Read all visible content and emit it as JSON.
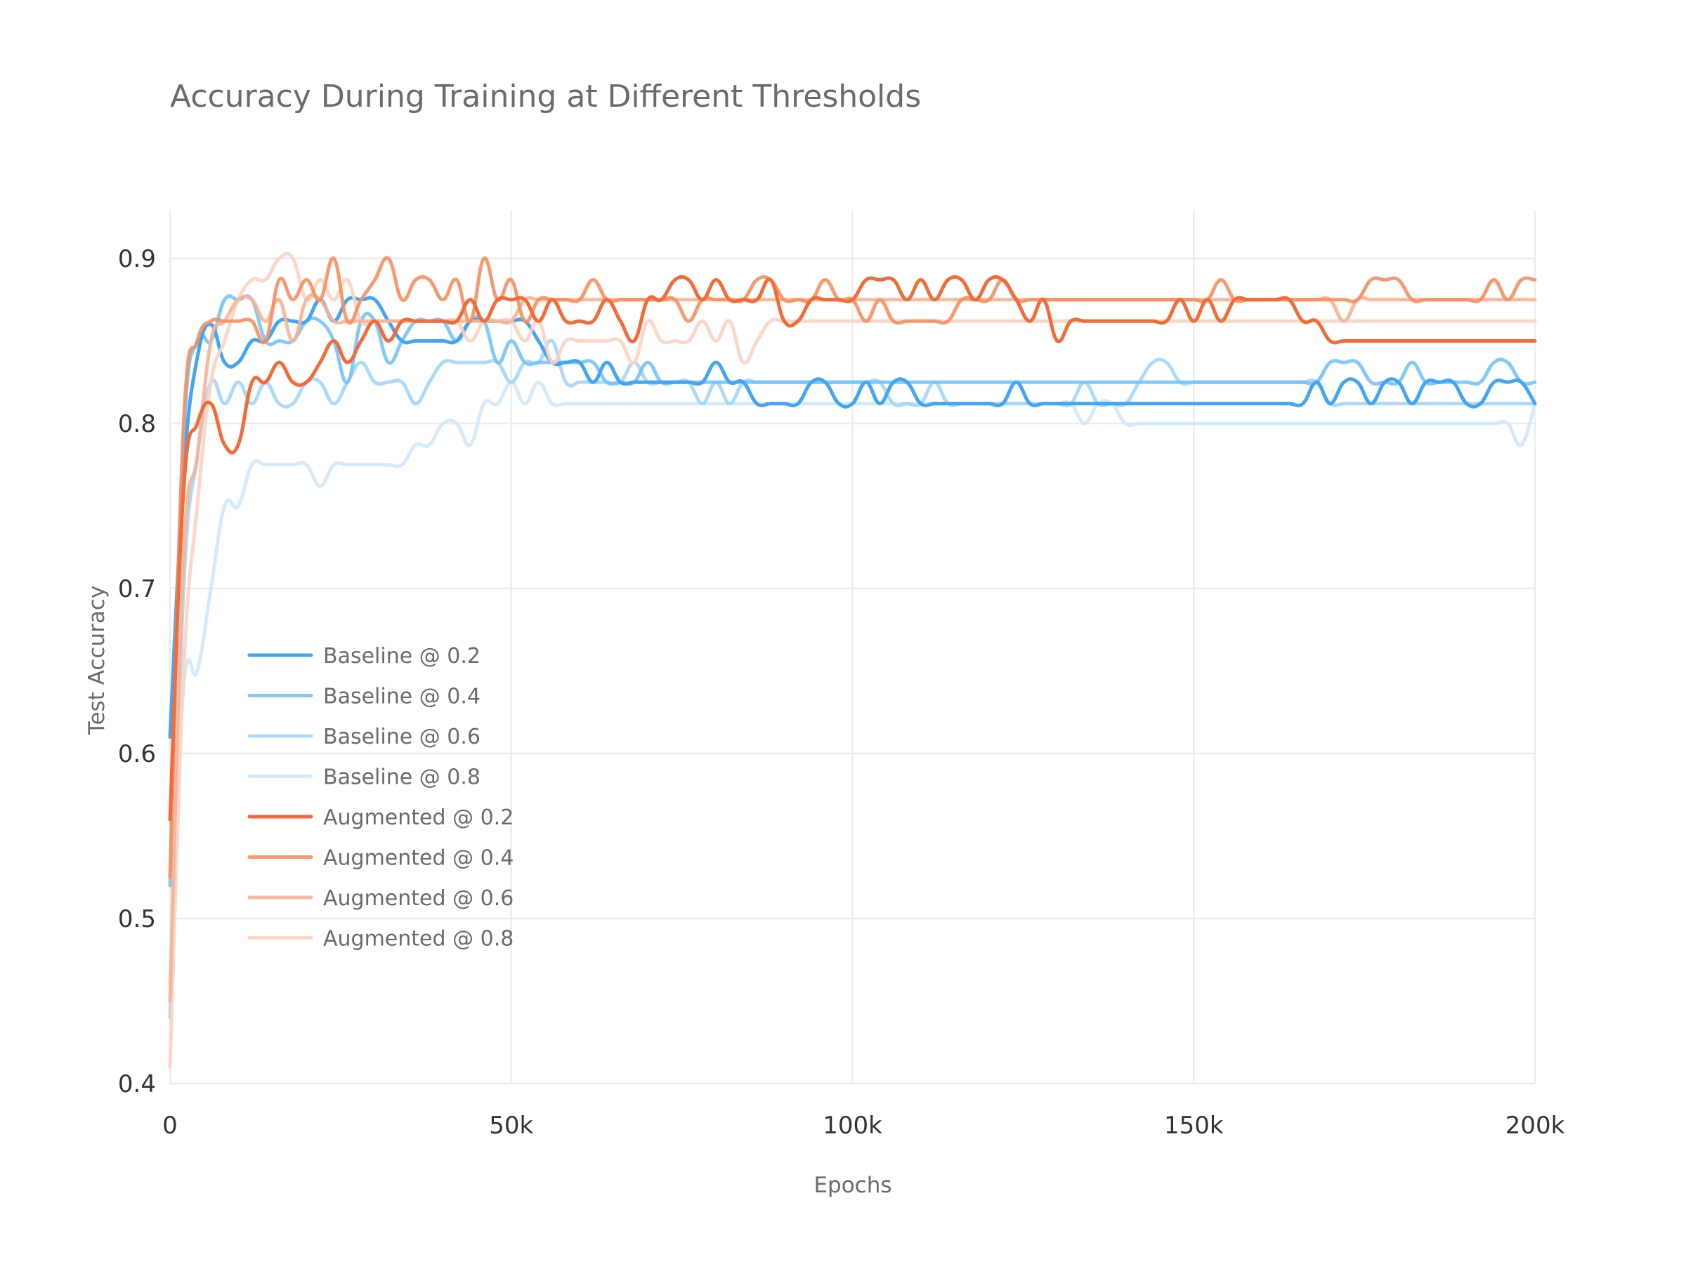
{
  "chart_data": {
    "type": "line",
    "title": "Accuracy During Training at Different Thresholds",
    "xlabel": "Epochs",
    "ylabel": "Test Accuracy",
    "xlim": [
      0,
      200000
    ],
    "ylim": [
      0.4,
      0.9
    ],
    "x_ticks": [
      0,
      50000,
      100000,
      150000,
      200000
    ],
    "x_tick_labels": [
      "0",
      "50k",
      "100k",
      "150k",
      "200k"
    ],
    "y_ticks": [
      0.4,
      0.5,
      0.6,
      0.7,
      0.8,
      0.9
    ],
    "y_tick_labels": [
      "0.4",
      "0.5",
      "0.6",
      "0.7",
      "0.8",
      "0.9"
    ],
    "grid": true,
    "legend_position": "lower-left",
    "x": [
      0,
      2000,
      4000,
      6000,
      8000,
      10000,
      12000,
      14000,
      16000,
      18000,
      20000,
      22000,
      24000,
      26000,
      28000,
      30000,
      32000,
      34000,
      36000,
      38000,
      40000,
      42000,
      44000,
      46000,
      48000,
      50000,
      52000,
      54000,
      56000,
      58000,
      60000,
      62000,
      64000,
      66000,
      68000,
      70000,
      72000,
      74000,
      76000,
      78000,
      80000,
      82000,
      84000,
      86000,
      88000,
      90000,
      92000,
      94000,
      96000,
      98000,
      100000,
      102000,
      104000,
      106000,
      108000,
      110000,
      112000,
      114000,
      116000,
      118000,
      120000,
      122000,
      124000,
      126000,
      128000,
      130000,
      132000,
      134000,
      136000,
      138000,
      140000,
      142000,
      144000,
      146000,
      148000,
      150000,
      152000,
      154000,
      156000,
      158000,
      160000,
      162000,
      164000,
      166000,
      168000,
      170000,
      172000,
      174000,
      176000,
      178000,
      180000,
      182000,
      184000,
      186000,
      188000,
      190000,
      192000,
      194000,
      196000,
      198000,
      200000
    ],
    "series": [
      {
        "name": "Baseline @ 0.2",
        "color": "#42a5f5",
        "opacity": 1.0,
        "values": [
          0.61,
          0.77,
          0.84,
          0.86,
          0.837,
          0.837,
          0.85,
          0.85,
          0.862,
          0.862,
          0.862,
          0.875,
          0.862,
          0.875,
          0.875,
          0.875,
          0.862,
          0.85,
          0.85,
          0.85,
          0.85,
          0.85,
          0.862,
          0.862,
          0.862,
          0.862,
          0.862,
          0.85,
          0.837,
          0.837,
          0.837,
          0.825,
          0.837,
          0.825,
          0.825,
          0.825,
          0.825,
          0.825,
          0.825,
          0.825,
          0.837,
          0.825,
          0.825,
          0.812,
          0.812,
          0.812,
          0.812,
          0.825,
          0.825,
          0.812,
          0.812,
          0.825,
          0.812,
          0.825,
          0.825,
          0.812,
          0.812,
          0.812,
          0.812,
          0.812,
          0.812,
          0.812,
          0.825,
          0.812,
          0.812,
          0.812,
          0.812,
          0.812,
          0.812,
          0.812,
          0.812,
          0.812,
          0.812,
          0.812,
          0.812,
          0.812,
          0.812,
          0.812,
          0.812,
          0.812,
          0.812,
          0.812,
          0.812,
          0.812,
          0.825,
          0.812,
          0.825,
          0.825,
          0.812,
          0.825,
          0.825,
          0.812,
          0.825,
          0.825,
          0.825,
          0.812,
          0.812,
          0.825,
          0.825,
          0.825,
          0.812
        ]
      },
      {
        "name": "Baseline @ 0.4",
        "color": "#6ec1f7",
        "opacity": 0.85,
        "values": [
          0.52,
          0.79,
          0.85,
          0.85,
          0.875,
          0.875,
          0.875,
          0.85,
          0.85,
          0.85,
          0.862,
          0.862,
          0.85,
          0.825,
          0.862,
          0.862,
          0.837,
          0.85,
          0.862,
          0.862,
          0.862,
          0.85,
          0.862,
          0.862,
          0.837,
          0.85,
          0.837,
          0.837,
          0.837,
          0.837,
          0.837,
          0.837,
          0.825,
          0.825,
          0.825,
          0.837,
          0.825,
          0.825,
          0.825,
          0.825,
          0.825,
          0.825,
          0.825,
          0.825,
          0.825,
          0.825,
          0.825,
          0.825,
          0.825,
          0.825,
          0.825,
          0.825,
          0.825,
          0.825,
          0.825,
          0.825,
          0.825,
          0.825,
          0.825,
          0.825,
          0.825,
          0.825,
          0.825,
          0.825,
          0.825,
          0.825,
          0.825,
          0.825,
          0.825,
          0.825,
          0.825,
          0.825,
          0.825,
          0.825,
          0.825,
          0.825,
          0.825,
          0.825,
          0.825,
          0.825,
          0.825,
          0.825,
          0.825,
          0.825,
          0.825,
          0.837,
          0.837,
          0.837,
          0.825,
          0.825,
          0.825,
          0.837,
          0.825,
          0.825,
          0.825,
          0.825,
          0.825,
          0.837,
          0.837,
          0.825,
          0.825
        ]
      },
      {
        "name": "Baseline @ 0.6",
        "color": "#9fd3f9",
        "opacity": 0.85,
        "values": [
          0.44,
          0.7,
          0.78,
          0.825,
          0.812,
          0.825,
          0.812,
          0.825,
          0.812,
          0.812,
          0.825,
          0.825,
          0.812,
          0.825,
          0.837,
          0.825,
          0.825,
          0.825,
          0.812,
          0.825,
          0.837,
          0.837,
          0.837,
          0.837,
          0.837,
          0.825,
          0.837,
          0.837,
          0.85,
          0.825,
          0.825,
          0.825,
          0.825,
          0.825,
          0.837,
          0.825,
          0.825,
          0.825,
          0.825,
          0.812,
          0.825,
          0.812,
          0.825,
          0.825,
          0.825,
          0.825,
          0.825,
          0.825,
          0.825,
          0.825,
          0.825,
          0.825,
          0.825,
          0.812,
          0.812,
          0.812,
          0.825,
          0.812,
          0.812,
          0.812,
          0.812,
          0.812,
          0.812,
          0.812,
          0.812,
          0.812,
          0.812,
          0.825,
          0.812,
          0.812,
          0.812,
          0.825,
          0.837,
          0.837,
          0.825,
          0.825,
          0.825,
          0.825,
          0.825,
          0.825,
          0.825,
          0.825,
          0.825,
          0.825,
          0.825,
          0.812,
          0.812,
          0.812,
          0.812,
          0.812,
          0.812,
          0.812,
          0.812,
          0.812,
          0.812,
          0.812,
          0.812,
          0.812,
          0.812,
          0.812,
          0.812
        ]
      },
      {
        "name": "Baseline @ 0.8",
        "color": "#cfe8fb",
        "opacity": 0.9,
        "values": [
          0.46,
          0.64,
          0.65,
          0.7,
          0.75,
          0.75,
          0.775,
          0.775,
          0.775,
          0.775,
          0.775,
          0.762,
          0.775,
          0.775,
          0.775,
          0.775,
          0.775,
          0.775,
          0.787,
          0.787,
          0.8,
          0.8,
          0.787,
          0.812,
          0.812,
          0.825,
          0.812,
          0.825,
          0.812,
          0.812,
          0.812,
          0.812,
          0.812,
          0.812,
          0.812,
          0.812,
          0.812,
          0.812,
          0.812,
          0.812,
          0.812,
          0.812,
          0.812,
          0.812,
          0.812,
          0.812,
          0.812,
          0.812,
          0.812,
          0.812,
          0.812,
          0.812,
          0.812,
          0.812,
          0.812,
          0.812,
          0.812,
          0.812,
          0.812,
          0.812,
          0.812,
          0.812,
          0.812,
          0.812,
          0.812,
          0.812,
          0.812,
          0.8,
          0.812,
          0.812,
          0.8,
          0.8,
          0.8,
          0.8,
          0.8,
          0.8,
          0.8,
          0.8,
          0.8,
          0.8,
          0.8,
          0.8,
          0.8,
          0.8,
          0.8,
          0.8,
          0.8,
          0.8,
          0.8,
          0.8,
          0.8,
          0.8,
          0.8,
          0.8,
          0.8,
          0.8,
          0.8,
          0.8,
          0.8,
          0.787,
          0.812
        ]
      },
      {
        "name": "Augmented @ 0.2",
        "color": "#f26b38",
        "opacity": 1.0,
        "values": [
          0.56,
          0.76,
          0.8,
          0.812,
          0.787,
          0.787,
          0.825,
          0.825,
          0.837,
          0.825,
          0.825,
          0.837,
          0.85,
          0.837,
          0.85,
          0.862,
          0.85,
          0.862,
          0.862,
          0.862,
          0.862,
          0.862,
          0.875,
          0.862,
          0.875,
          0.875,
          0.875,
          0.862,
          0.875,
          0.862,
          0.862,
          0.862,
          0.875,
          0.862,
          0.85,
          0.875,
          0.875,
          0.887,
          0.887,
          0.875,
          0.887,
          0.875,
          0.875,
          0.875,
          0.887,
          0.862,
          0.862,
          0.875,
          0.875,
          0.875,
          0.875,
          0.887,
          0.887,
          0.887,
          0.875,
          0.887,
          0.875,
          0.887,
          0.887,
          0.875,
          0.887,
          0.887,
          0.875,
          0.862,
          0.875,
          0.85,
          0.862,
          0.862,
          0.862,
          0.862,
          0.862,
          0.862,
          0.862,
          0.862,
          0.875,
          0.862,
          0.875,
          0.862,
          0.875,
          0.875,
          0.875,
          0.875,
          0.875,
          0.862,
          0.862,
          0.85,
          0.85,
          0.85,
          0.85,
          0.85,
          0.85,
          0.85,
          0.85,
          0.85,
          0.85,
          0.85,
          0.85,
          0.85,
          0.85,
          0.85,
          0.85
        ]
      },
      {
        "name": "Augmented @ 0.4",
        "color": "#f5905f",
        "opacity": 0.9,
        "values": [
          0.525,
          0.8,
          0.85,
          0.862,
          0.862,
          0.862,
          0.862,
          0.85,
          0.887,
          0.875,
          0.887,
          0.875,
          0.9,
          0.862,
          0.875,
          0.887,
          0.9,
          0.875,
          0.887,
          0.887,
          0.875,
          0.887,
          0.862,
          0.9,
          0.875,
          0.887,
          0.862,
          0.875,
          0.875,
          0.875,
          0.875,
          0.887,
          0.875,
          0.875,
          0.875,
          0.875,
          0.875,
          0.875,
          0.862,
          0.875,
          0.875,
          0.875,
          0.875,
          0.887,
          0.887,
          0.875,
          0.875,
          0.875,
          0.887,
          0.875,
          0.875,
          0.862,
          0.875,
          0.862,
          0.862,
          0.862,
          0.862,
          0.862,
          0.875,
          0.875,
          0.875,
          0.887,
          0.875,
          0.875,
          0.875,
          0.875,
          0.875,
          0.875,
          0.875,
          0.875,
          0.875,
          0.875,
          0.875,
          0.875,
          0.875,
          0.875,
          0.875,
          0.887,
          0.875,
          0.875,
          0.875,
          0.875,
          0.875,
          0.875,
          0.875,
          0.875,
          0.875,
          0.875,
          0.887,
          0.887,
          0.887,
          0.875,
          0.875,
          0.875,
          0.875,
          0.875,
          0.875,
          0.887,
          0.875,
          0.887,
          0.887
        ]
      },
      {
        "name": "Augmented @ 0.6",
        "color": "#f8b394",
        "opacity": 0.9,
        "values": [
          0.45,
          0.72,
          0.78,
          0.85,
          0.862,
          0.875,
          0.875,
          0.862,
          0.875,
          0.85,
          0.875,
          0.875,
          0.862,
          0.862,
          0.862,
          0.862,
          0.862,
          0.862,
          0.862,
          0.862,
          0.862,
          0.862,
          0.862,
          0.862,
          0.862,
          0.862,
          0.875,
          0.875,
          0.875,
          0.875,
          0.875,
          0.875,
          0.875,
          0.875,
          0.875,
          0.875,
          0.875,
          0.875,
          0.875,
          0.875,
          0.875,
          0.875,
          0.875,
          0.875,
          0.875,
          0.875,
          0.875,
          0.875,
          0.875,
          0.875,
          0.875,
          0.875,
          0.875,
          0.875,
          0.875,
          0.875,
          0.875,
          0.875,
          0.875,
          0.875,
          0.875,
          0.875,
          0.875,
          0.875,
          0.875,
          0.875,
          0.875,
          0.875,
          0.875,
          0.875,
          0.875,
          0.875,
          0.875,
          0.875,
          0.875,
          0.875,
          0.875,
          0.875,
          0.875,
          0.875,
          0.875,
          0.875,
          0.875,
          0.875,
          0.875,
          0.875,
          0.862,
          0.875,
          0.875,
          0.875,
          0.875,
          0.875,
          0.875,
          0.875,
          0.875,
          0.875,
          0.875,
          0.875,
          0.875,
          0.875,
          0.875
        ]
      },
      {
        "name": "Augmented @ 0.8",
        "color": "#fbd3c2",
        "opacity": 0.9,
        "values": [
          0.41,
          0.65,
          0.75,
          0.825,
          0.85,
          0.875,
          0.887,
          0.887,
          0.9,
          0.9,
          0.875,
          0.887,
          0.875,
          0.887,
          0.862,
          0.862,
          0.862,
          0.862,
          0.862,
          0.862,
          0.862,
          0.862,
          0.85,
          0.862,
          0.862,
          0.862,
          0.85,
          0.862,
          0.837,
          0.85,
          0.85,
          0.85,
          0.85,
          0.85,
          0.837,
          0.862,
          0.85,
          0.85,
          0.85,
          0.862,
          0.85,
          0.862,
          0.837,
          0.85,
          0.862,
          0.862,
          0.862,
          0.862,
          0.862,
          0.862,
          0.862,
          0.862,
          0.862,
          0.862,
          0.862,
          0.862,
          0.862,
          0.862,
          0.862,
          0.862,
          0.862,
          0.862,
          0.862,
          0.862,
          0.862,
          0.862,
          0.862,
          0.862,
          0.862,
          0.862,
          0.862,
          0.862,
          0.862,
          0.862,
          0.862,
          0.862,
          0.862,
          0.862,
          0.862,
          0.862,
          0.862,
          0.862,
          0.862,
          0.862,
          0.862,
          0.862,
          0.862,
          0.862,
          0.862,
          0.862,
          0.862,
          0.862,
          0.862,
          0.862,
          0.862,
          0.862,
          0.862,
          0.862,
          0.862,
          0.862,
          0.862
        ]
      }
    ]
  }
}
